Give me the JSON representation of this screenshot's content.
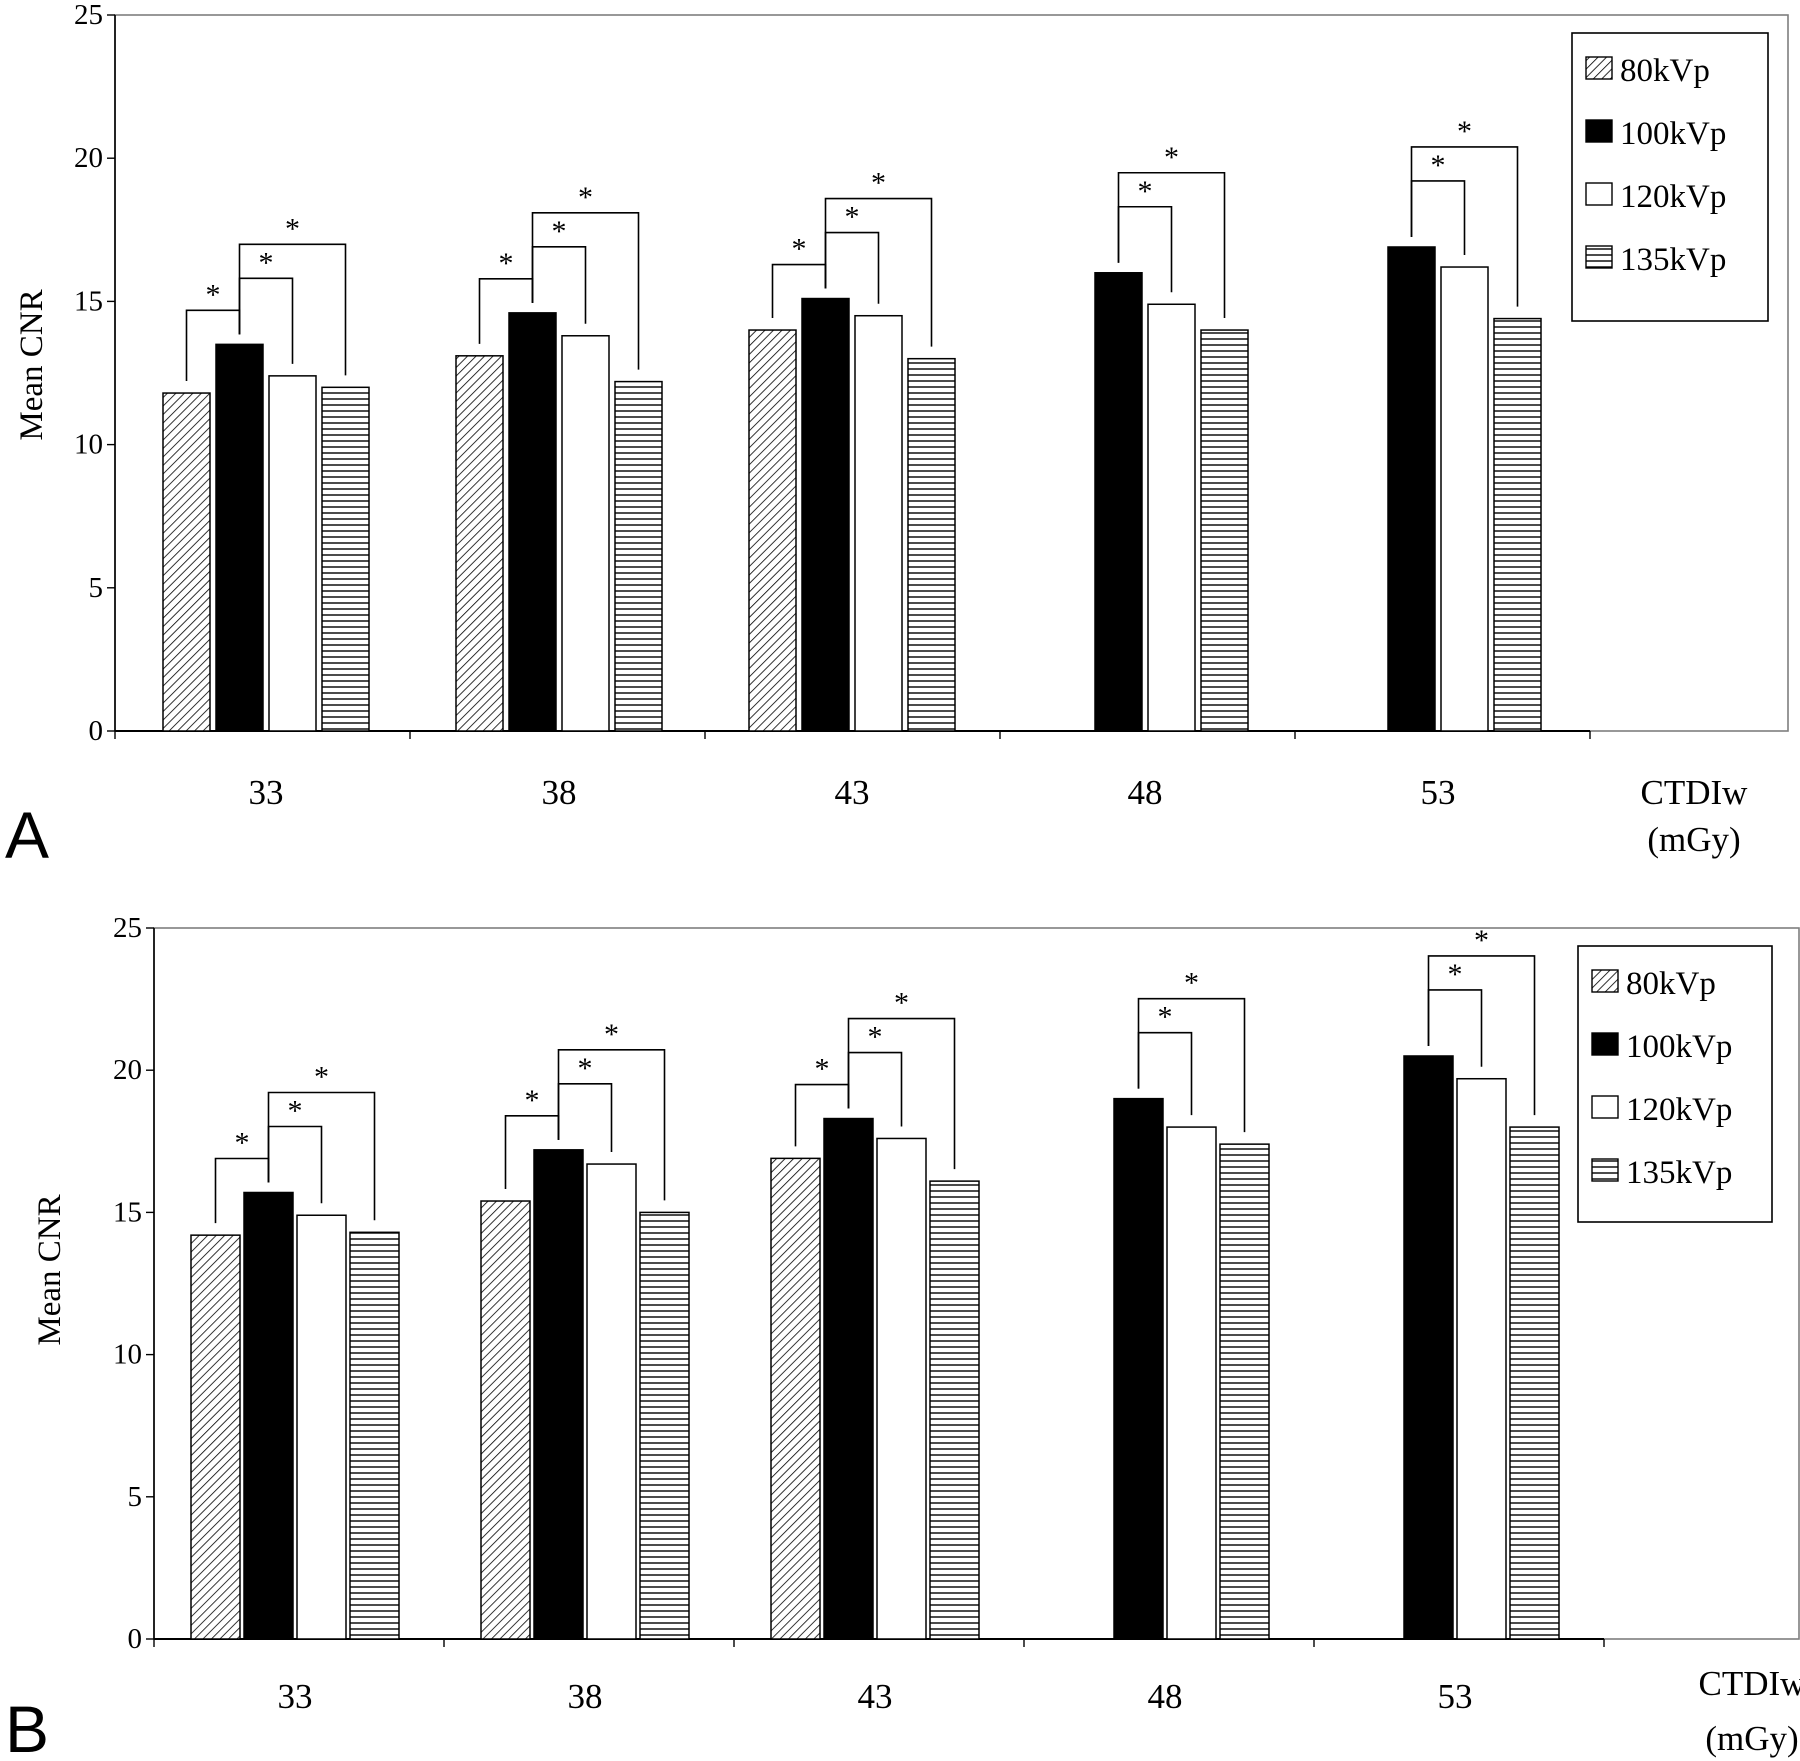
{
  "chart_data": [
    {
      "panel_label": "A",
      "type": "bar",
      "ylabel": "Mean CNR",
      "xlabel": [
        "CTDIw",
        "(mGy)"
      ],
      "ylim": [
        0,
        25
      ],
      "yticks": [
        0,
        5,
        10,
        15,
        20,
        25
      ],
      "categories": [
        "33",
        "38",
        "43",
        "48",
        "53"
      ],
      "series": [
        {
          "name": "80kVp",
          "pattern": "diagonal",
          "values": [
            11.8,
            13.1,
            14.0,
            null,
            null
          ]
        },
        {
          "name": "100kVp",
          "pattern": "solid-black",
          "values": [
            13.5,
            14.6,
            15.1,
            16.0,
            16.9
          ]
        },
        {
          "name": "120kVp",
          "pattern": "white",
          "values": [
            12.4,
            13.8,
            14.5,
            14.9,
            16.2
          ]
        },
        {
          "name": "135kVp",
          "pattern": "horizontal",
          "values": [
            12.0,
            12.2,
            13.0,
            14.0,
            14.4
          ]
        }
      ],
      "significance_marker": "*",
      "significance": [
        {
          "category": "33",
          "pairs": [
            [
              "100kVp",
              "80kVp"
            ],
            [
              "100kVp",
              "120kVp"
            ],
            [
              "100kVp",
              "135kVp"
            ]
          ]
        },
        {
          "category": "38",
          "pairs": [
            [
              "100kVp",
              "80kVp"
            ],
            [
              "100kVp",
              "120kVp"
            ],
            [
              "100kVp",
              "135kVp"
            ]
          ]
        },
        {
          "category": "43",
          "pairs": [
            [
              "100kVp",
              "80kVp"
            ],
            [
              "100kVp",
              "120kVp"
            ],
            [
              "100kVp",
              "135kVp"
            ]
          ]
        },
        {
          "category": "48",
          "pairs": [
            [
              "100kVp",
              "120kVp"
            ],
            [
              "100kVp",
              "135kVp"
            ]
          ]
        },
        {
          "category": "53",
          "pairs": [
            [
              "100kVp",
              "120kVp"
            ],
            [
              "100kVp",
              "135kVp"
            ]
          ]
        }
      ],
      "legend": "top-right",
      "grid": false
    },
    {
      "panel_label": "B",
      "type": "bar",
      "ylabel": "Mean CNR",
      "xlabel": [
        "CTDIw",
        "(mGy)"
      ],
      "ylim": [
        0,
        25
      ],
      "yticks": [
        0,
        5,
        10,
        15,
        20,
        25
      ],
      "categories": [
        "33",
        "38",
        "43",
        "48",
        "53"
      ],
      "series": [
        {
          "name": "80kVp",
          "pattern": "diagonal",
          "values": [
            14.2,
            15.4,
            16.9,
            null,
            null
          ]
        },
        {
          "name": "100kVp",
          "pattern": "solid-black",
          "values": [
            15.7,
            17.2,
            18.3,
            19.0,
            20.5
          ]
        },
        {
          "name": "120kVp",
          "pattern": "white",
          "values": [
            14.9,
            16.7,
            17.6,
            18.0,
            19.7
          ]
        },
        {
          "name": "135kVp",
          "pattern": "horizontal",
          "values": [
            14.3,
            15.0,
            16.1,
            17.4,
            18.0
          ]
        }
      ],
      "significance_marker": "*",
      "significance": [
        {
          "category": "33",
          "pairs": [
            [
              "100kVp",
              "80kVp"
            ],
            [
              "100kVp",
              "120kVp"
            ],
            [
              "100kVp",
              "135kVp"
            ]
          ]
        },
        {
          "category": "38",
          "pairs": [
            [
              "100kVp",
              "80kVp"
            ],
            [
              "100kVp",
              "120kVp"
            ],
            [
              "100kVp",
              "135kVp"
            ]
          ]
        },
        {
          "category": "43",
          "pairs": [
            [
              "100kVp",
              "80kVp"
            ],
            [
              "100kVp",
              "120kVp"
            ],
            [
              "100kVp",
              "135kVp"
            ]
          ]
        },
        {
          "category": "48",
          "pairs": [
            [
              "100kVp",
              "120kVp"
            ],
            [
              "100kVp",
              "135kVp"
            ]
          ]
        },
        {
          "category": "53",
          "pairs": [
            [
              "100kVp",
              "120kVp"
            ],
            [
              "100kVp",
              "135kVp"
            ]
          ]
        }
      ],
      "legend": "top-right",
      "grid": false
    }
  ]
}
